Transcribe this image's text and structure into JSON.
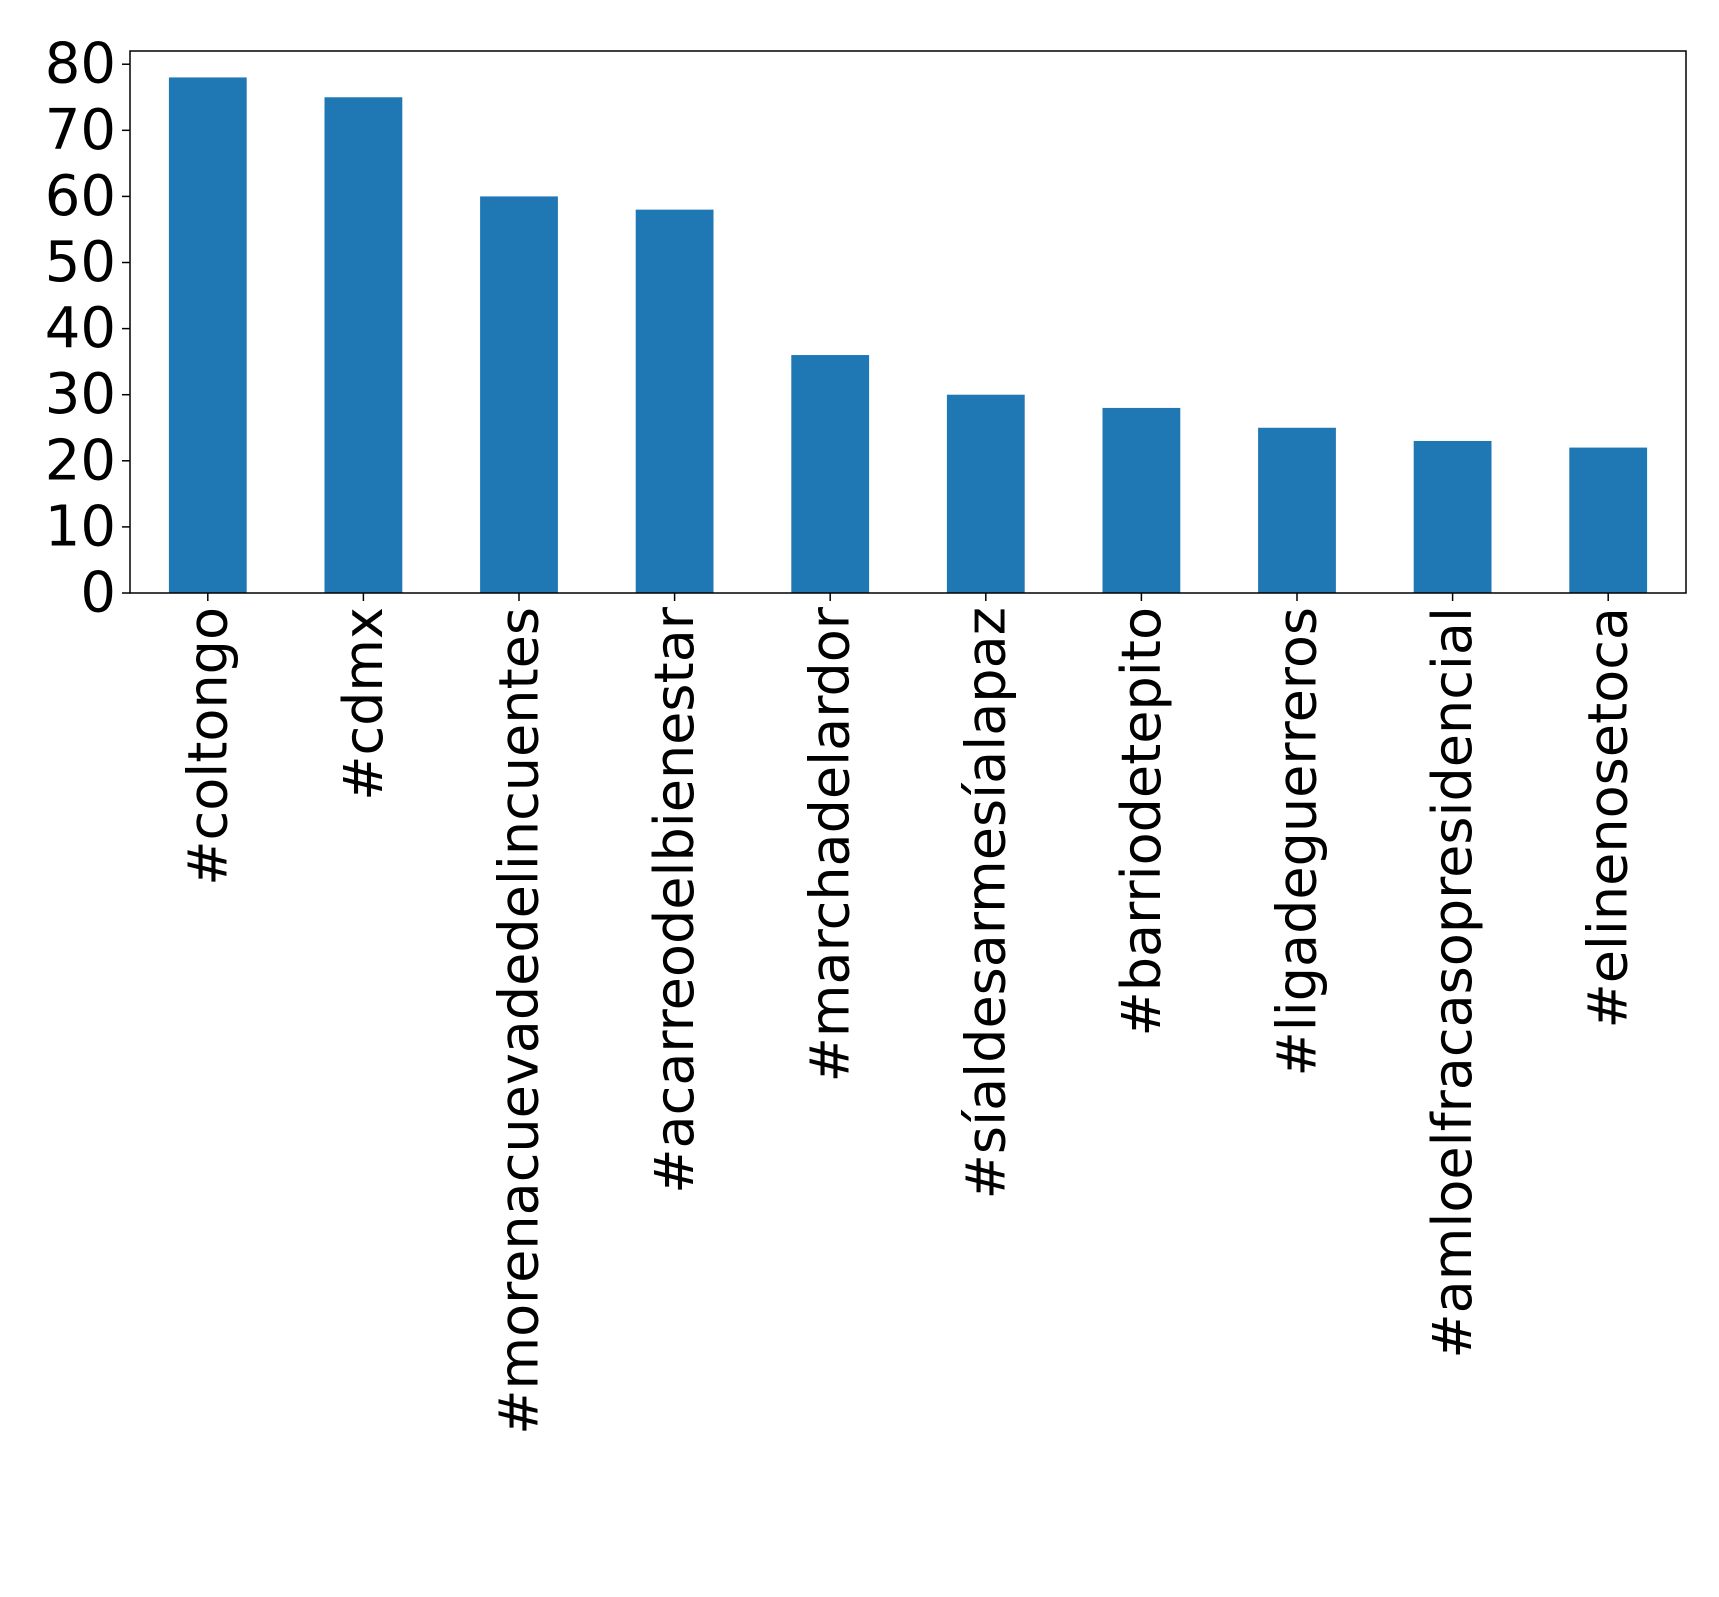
{
  "chart_data": {
    "type": "bar",
    "title": "",
    "xlabel": "",
    "ylabel": "",
    "categories": [
      "#coltongo",
      "#cdmx",
      "#morenacuevadedelincuentes",
      "#acarreodelbienestar",
      "#marchadelardor",
      "#síaldesarmesíalapaz",
      "#barriodetepito",
      "#ligadeguerreros",
      "#amloelfracasopresidencial",
      "#elinenosetoca"
    ],
    "values": [
      78,
      75,
      60,
      58,
      36,
      30,
      28,
      25,
      23,
      22
    ],
    "ylim": [
      0,
      82
    ],
    "yticks": [
      0,
      10,
      20,
      30,
      40,
      50,
      60,
      70,
      80
    ],
    "grid": false,
    "legend": "none",
    "colors": {
      "bar": "#1f77b4",
      "axis": "#000000",
      "background": "#ffffff"
    }
  }
}
